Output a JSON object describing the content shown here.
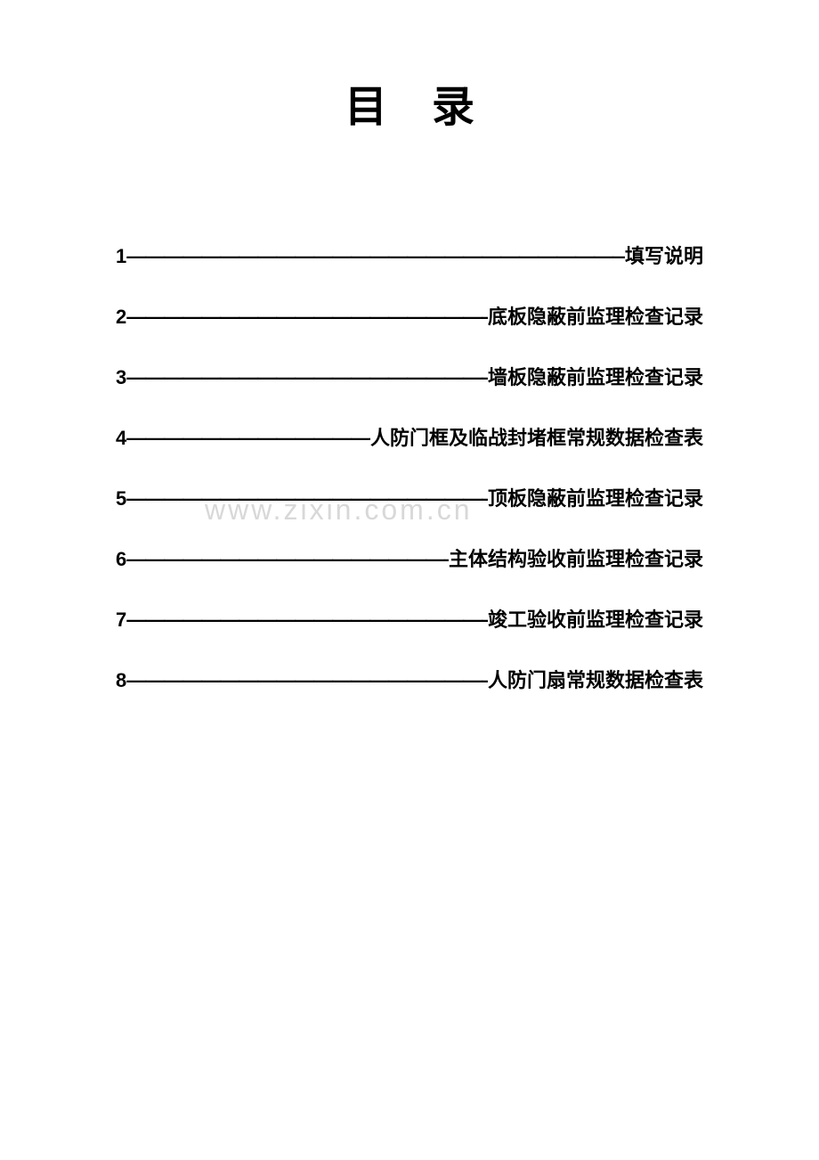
{
  "title": "目录",
  "watermark": "www.zixin.com.cn",
  "toc": [
    {
      "num": "1",
      "dashes": "————————————————————————————————————————————",
      "label": "填写说明"
    },
    {
      "num": "2",
      "dashes": "——————————————————————————————",
      "label": "底板隐蔽前监理检查记录"
    },
    {
      "num": "3",
      "dashes": "——————————————————————————————",
      "label": "墙板隐蔽前监理检查记录"
    },
    {
      "num": "4",
      "dashes": "————————————————",
      "label": "人防门框及临战封堵框常规数据检查表"
    },
    {
      "num": "5",
      "dashes": "——————————————————————————————",
      "label": "顶板隐蔽前监理检查记录"
    },
    {
      "num": "6",
      "dashes": "——————————————————————————",
      "label": "主体结构验收前监理检查记录"
    },
    {
      "num": "7",
      "dashes": "——————————————————————————————",
      "label": "竣工验收前监理检查记录"
    },
    {
      "num": "8",
      "dashes": "——————————————————————————————",
      "label": "人防门扇常规数据检查表"
    }
  ],
  "style": {
    "page_bg": "#ffffff",
    "text_color": "#000000",
    "watermark_color": "#d8d8d8",
    "title_fontsize": 48,
    "entry_fontsize": 22,
    "watermark_fontsize": 32,
    "entry_spacing": 36
  }
}
